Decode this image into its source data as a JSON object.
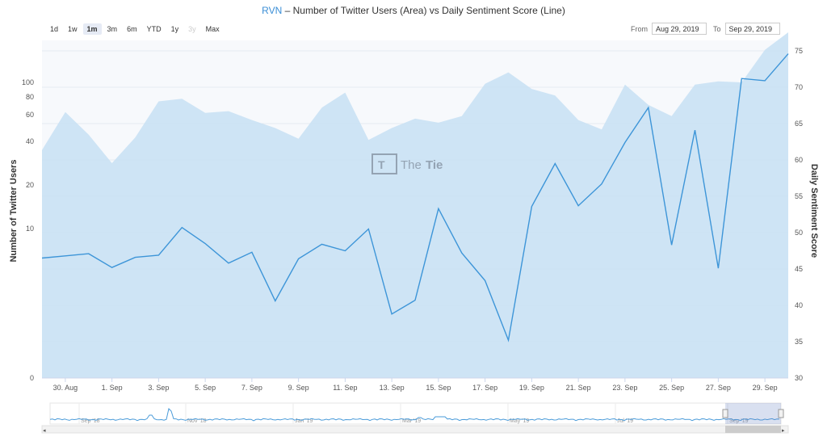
{
  "title": {
    "ticker": "RVN",
    "rest": " – Number of Twitter Users (Area) vs Daily Sentiment Score (Line)"
  },
  "range_buttons": [
    {
      "label": "1d",
      "state": "normal"
    },
    {
      "label": "1w",
      "state": "normal"
    },
    {
      "label": "1m",
      "state": "active"
    },
    {
      "label": "3m",
      "state": "normal"
    },
    {
      "label": "6m",
      "state": "normal"
    },
    {
      "label": "YTD",
      "state": "normal"
    },
    {
      "label": "1y",
      "state": "normal"
    },
    {
      "label": "3y",
      "state": "disabled"
    },
    {
      "label": "Max",
      "state": "normal"
    }
  ],
  "date_range": {
    "from_label": "From",
    "from_value": "Aug 29, 2019",
    "to_label": "To",
    "to_value": "Sep 29, 2019"
  },
  "watermark": {
    "text_a": "The",
    "text_b": "Tie"
  },
  "colors": {
    "area_fill": "#c9e1f4",
    "line": "#3d95d8",
    "accent": "#3a8ed6"
  },
  "chart_data": {
    "type": "line",
    "x_tick_labels": [
      "30. Aug",
      "1. Sep",
      "3. Sep",
      "5. Sep",
      "7. Sep",
      "9. Sep",
      "11. Sep",
      "13. Sep",
      "15. Sep",
      "17. Sep",
      "19. Sep",
      "21. Sep",
      "23. Sep",
      "25. Sep",
      "27. Sep",
      "29. Sep"
    ],
    "x_days": [
      "29. Aug",
      "30. Aug",
      "31. Aug",
      "1. Sep",
      "2. Sep",
      "3. Sep",
      "4. Sep",
      "5. Sep",
      "6. Sep",
      "7. Sep",
      "8. Sep",
      "9. Sep",
      "10. Sep",
      "11. Sep",
      "12. Sep",
      "13. Sep",
      "14. Sep",
      "15. Sep",
      "16. Sep",
      "17. Sep",
      "18. Sep",
      "19. Sep",
      "20. Sep",
      "21. Sep",
      "22. Sep",
      "23. Sep",
      "24. Sep",
      "25. Sep",
      "26. Sep",
      "27. Sep",
      "28. Sep",
      "29. Sep",
      "30. Sep"
    ],
    "ylabel_left": "Number of Twitter Users",
    "ylabel_right": "Daily Sentiment Score",
    "y_left_ticks": [
      0,
      10,
      20,
      40,
      60,
      80,
      100
    ],
    "y_right_ticks": [
      30,
      35,
      40,
      45,
      50,
      55,
      60,
      65,
      70,
      75
    ],
    "y_right_range": [
      30,
      76
    ],
    "series": [
      {
        "type": "area",
        "values": [
          36,
          63,
          45,
          30,
          43,
          75,
          78,
          62,
          64,
          56,
          50,
          42,
          68,
          86,
          41,
          50,
          57,
          54,
          59,
          98,
          120,
          91,
          82,
          56,
          49,
          97,
          71,
          59,
          97,
          102,
          100,
          165,
          200
        ]
      },
      {
        "type": "line",
        "values": [
          46.5,
          46.8,
          47.1,
          45.2,
          46.6,
          46.9,
          50.7,
          48.5,
          45.8,
          47.3,
          40.6,
          46.4,
          48.4,
          47.5,
          50.5,
          38.8,
          40.7,
          53.3,
          47.2,
          43.4,
          35.2,
          53.6,
          59.5,
          53.7,
          56.7,
          62.4,
          67.2,
          48.3,
          64.1,
          45.1,
          71.2,
          70.9,
          74.6
        ]
      }
    ]
  },
  "navigator": {
    "labels": [
      "Sep '18",
      "Nov '18",
      "Jan '19",
      "Mar '19",
      "May '19",
      "Jul '19",
      "Sep '19"
    ]
  }
}
